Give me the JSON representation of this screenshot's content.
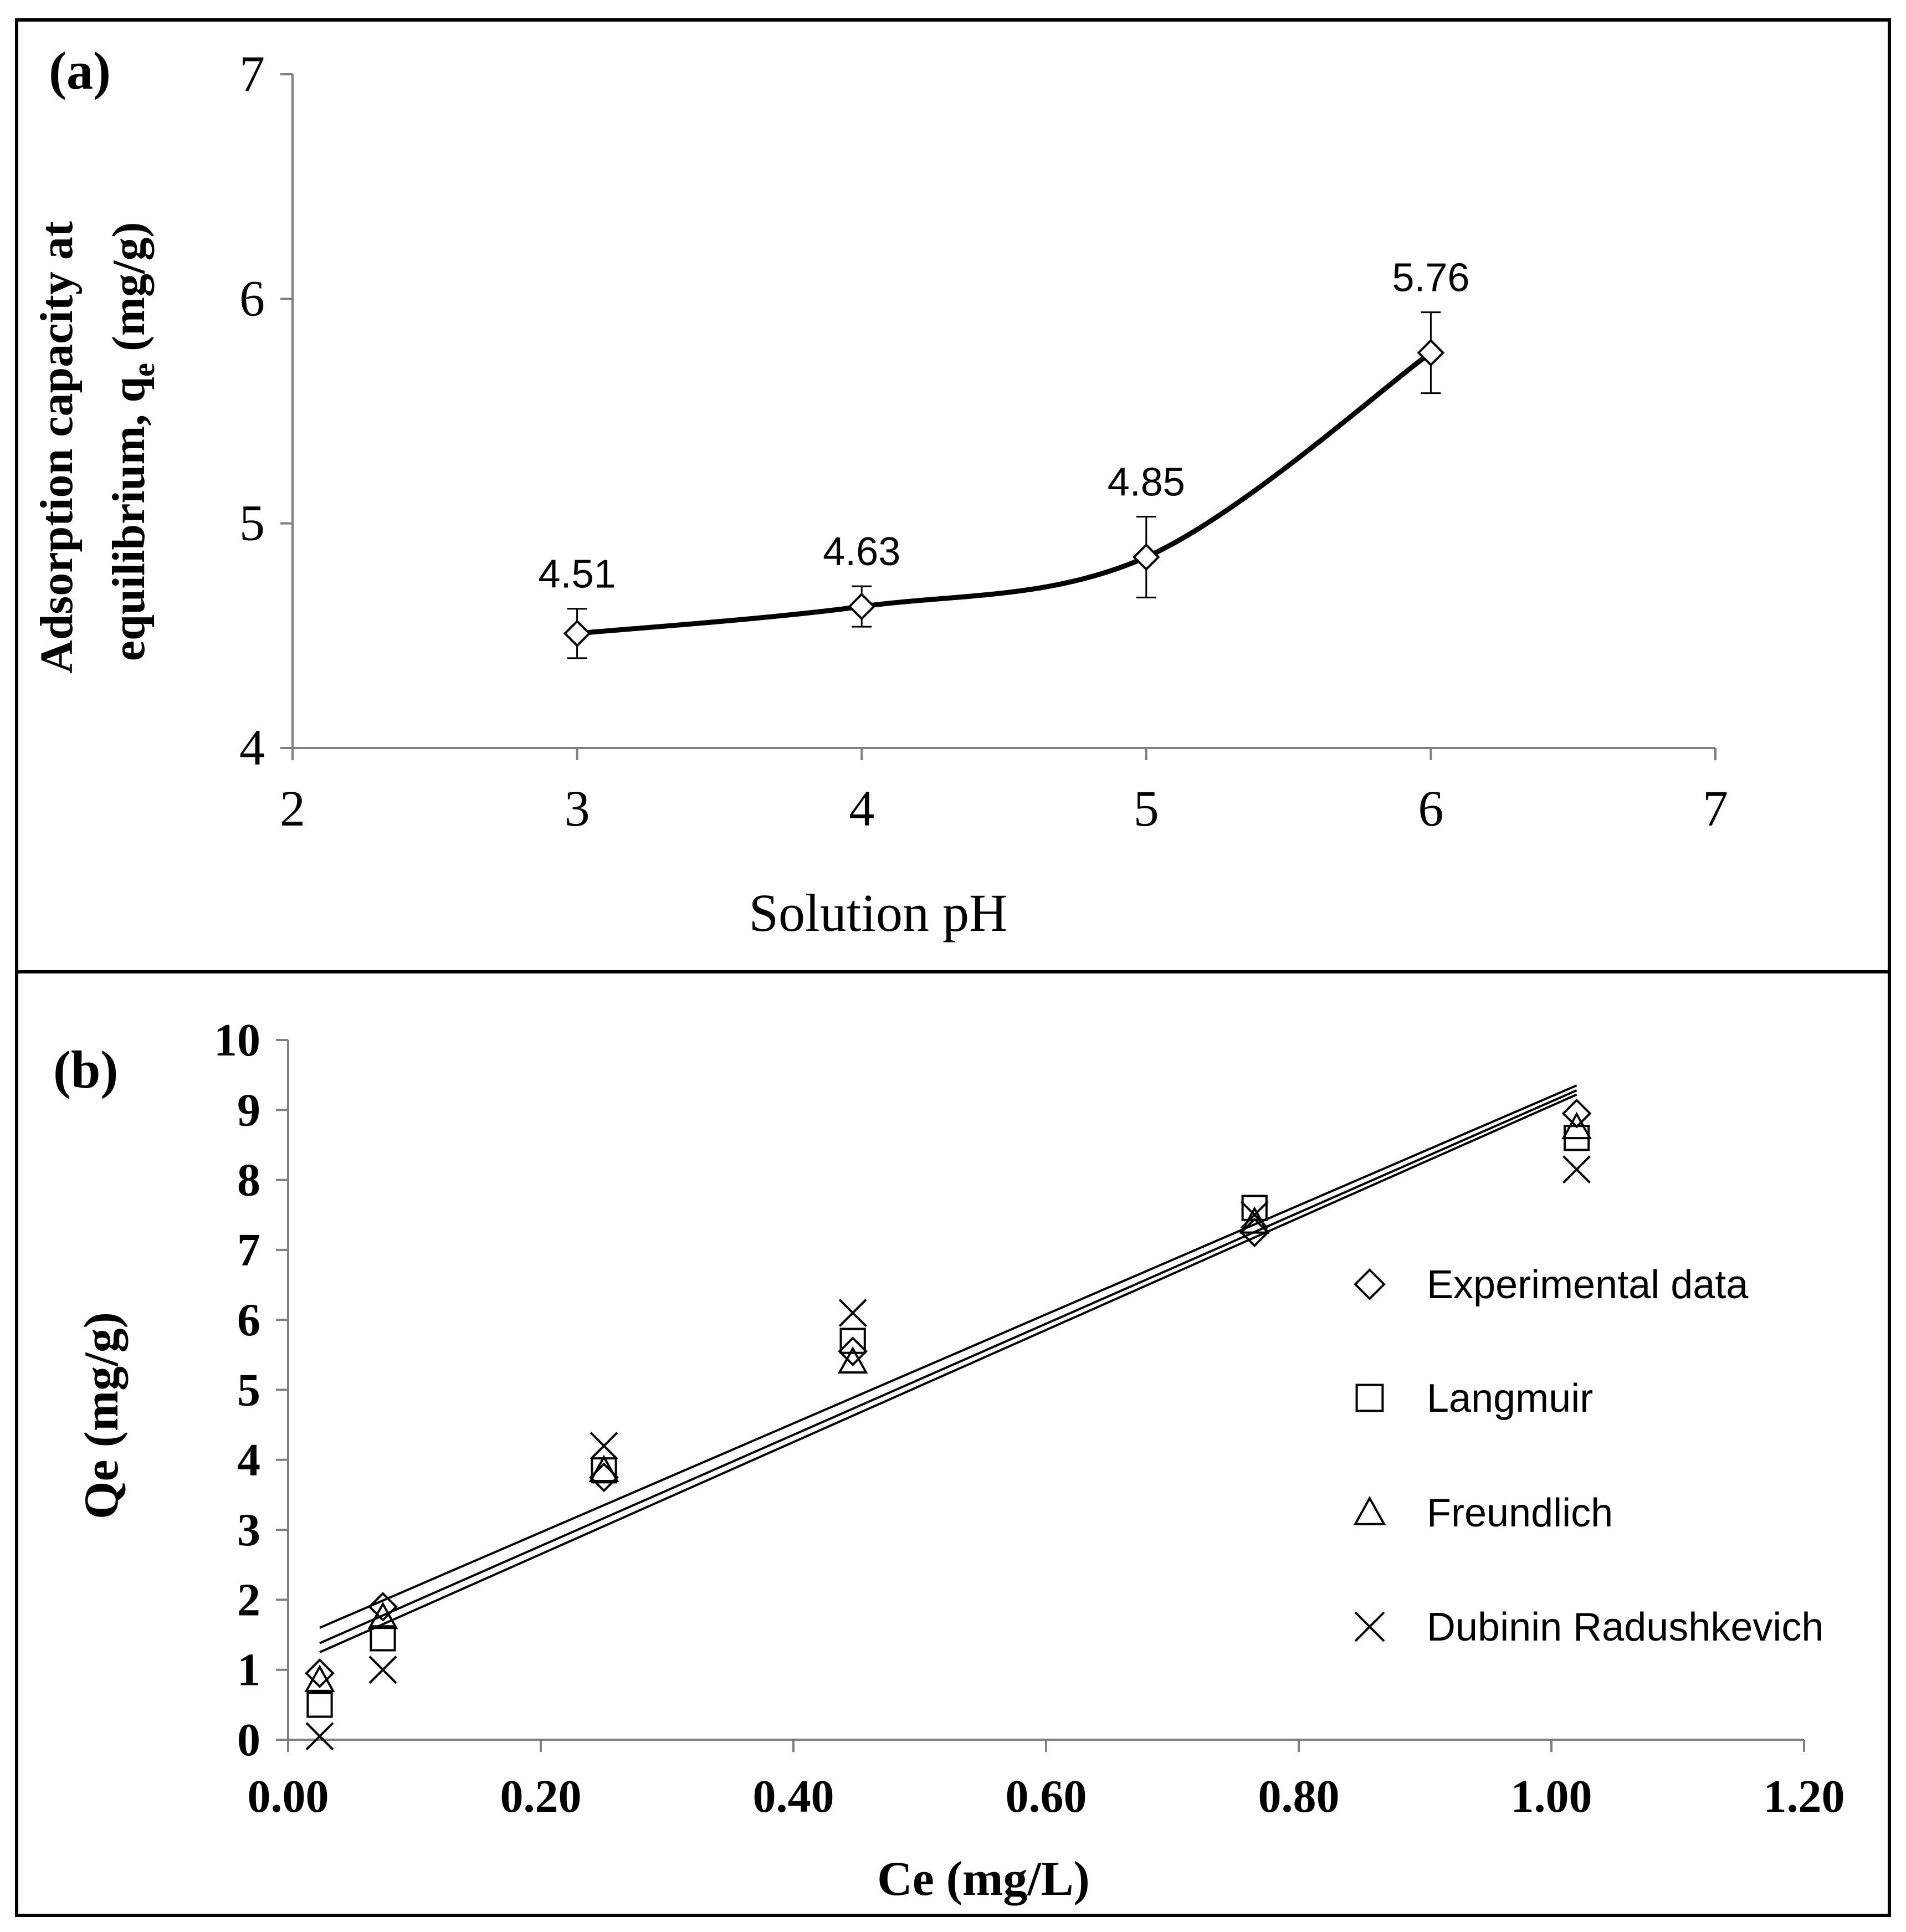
{
  "chart_data": [
    {
      "id": "a",
      "type": "line",
      "panel_label": "(a)",
      "title": "",
      "xlabel": "Solution pH",
      "ylabel_line1": "Adsorption capacity at",
      "ylabel_line2_main": "equilibrium, q",
      "ylabel_line2_sub": "e",
      "ylabel_line2_tail": " (mg/g)",
      "xlim": [
        2,
        7
      ],
      "ylim": [
        4,
        7
      ],
      "xticks": [
        2,
        3,
        4,
        5,
        6,
        7
      ],
      "yticks": [
        4,
        5,
        6,
        7
      ],
      "x_tick_labels": [
        "2",
        "3",
        "4",
        "5",
        "6",
        "7"
      ],
      "y_tick_labels": [
        "4",
        "5",
        "6",
        "7"
      ],
      "grid": false,
      "series": [
        {
          "name": "qe",
          "marker": "diamond",
          "smooth": true,
          "x": [
            3,
            4,
            5,
            6
          ],
          "y": [
            4.51,
            4.63,
            4.85,
            5.76
          ],
          "error": [
            0.11,
            0.09,
            0.18,
            0.18
          ],
          "data_labels": [
            "4.51",
            "4.63",
            "4.85",
            "5.76"
          ]
        }
      ]
    },
    {
      "id": "b",
      "type": "scatter",
      "panel_label": "(b)",
      "title": "",
      "xlabel": "Ce (mg/L)",
      "ylabel": "Qe (mg/g)",
      "xlim": [
        0,
        1.2
      ],
      "ylim": [
        0,
        10
      ],
      "xticks": [
        0,
        0.2,
        0.4,
        0.6,
        0.8,
        1.0,
        1.2
      ],
      "yticks": [
        0,
        1,
        2,
        3,
        4,
        5,
        6,
        7,
        8,
        9,
        10
      ],
      "x_tick_labels": [
        "0.00",
        "0.20",
        "0.40",
        "0.60",
        "0.80",
        "1.00",
        "1.20"
      ],
      "y_tick_labels": [
        "0",
        "1",
        "2",
        "3",
        "4",
        "5",
        "6",
        "7",
        "8",
        "9",
        "10"
      ],
      "grid": false,
      "legend_position": "right",
      "x": [
        0.025,
        0.075,
        0.25,
        0.447,
        0.765,
        1.02
      ],
      "series": [
        {
          "name": "Experimental data",
          "marker": "diamond",
          "values": [
            0.95,
            1.9,
            3.75,
            5.55,
            7.25,
            8.95
          ]
        },
        {
          "name": "Langmuir",
          "marker": "square",
          "values": [
            0.5,
            1.45,
            3.85,
            5.7,
            7.6,
            8.6
          ]
        },
        {
          "name": "Freundlich",
          "marker": "triangle",
          "values": [
            0.85,
            1.75,
            3.85,
            5.4,
            7.4,
            8.75
          ]
        },
        {
          "name": "Dubinin Radushkevich",
          "marker": "x",
          "values": [
            0.05,
            1.0,
            4.2,
            6.1,
            7.5,
            8.15
          ]
        }
      ],
      "trendlines": [
        {
          "x": [
            0.025,
            1.02
          ],
          "y": [
            1.6,
            9.35
          ]
        },
        {
          "x": [
            0.025,
            1.02
          ],
          "y": [
            1.38,
            9.28
          ]
        },
        {
          "x": [
            0.025,
            1.02
          ],
          "y": [
            1.25,
            9.22
          ]
        }
      ]
    }
  ]
}
